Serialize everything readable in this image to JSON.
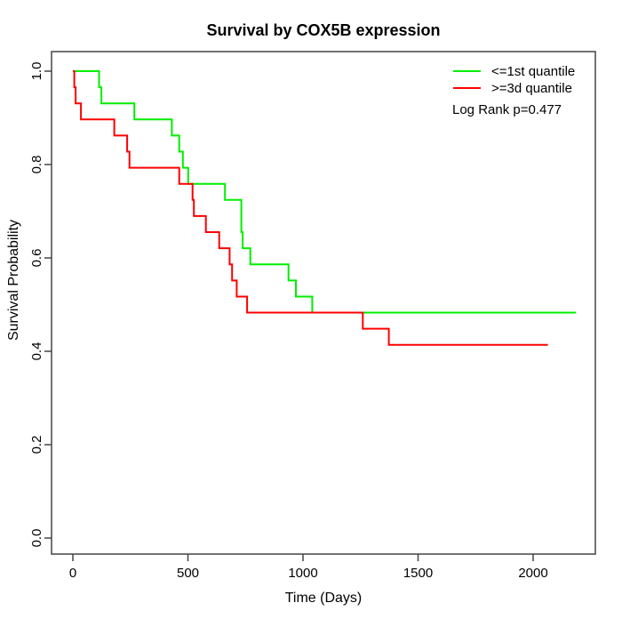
{
  "figure": {
    "background": "#ffffff",
    "axis_color": "#444444",
    "text_color": "#000000"
  },
  "chart_data": {
    "type": "line",
    "subtype": "kaplan-meier-step",
    "title": "Survival by COX5B expression",
    "xlabel": "Time (Days)",
    "ylabel": "Survival Probability",
    "x_range": [
      0,
      2000
    ],
    "y_range": [
      0.0,
      1.0
    ],
    "grid": false,
    "legend_position": "top-right",
    "annotation": "Log Rank p=0.477",
    "x_ticks": [
      {
        "value": 0,
        "label": "0"
      },
      {
        "value": 500,
        "label": "500"
      },
      {
        "value": 1000,
        "label": "1000"
      },
      {
        "value": 1500,
        "label": "1500"
      },
      {
        "value": 2000,
        "label": "2000"
      }
    ],
    "y_ticks": [
      {
        "value": 0.0,
        "label": "0.0"
      },
      {
        "value": 0.2,
        "label": "0.2"
      },
      {
        "value": 0.4,
        "label": "0.4"
      },
      {
        "value": 0.6,
        "label": "0.6"
      },
      {
        "value": 0.8,
        "label": "0.8"
      },
      {
        "value": 1.0,
        "label": "1.0"
      }
    ],
    "series": [
      {
        "name": "<=1st quantile",
        "color": "#00ee00",
        "end_time": 2186,
        "points": [
          [
            0,
            1.0
          ],
          [
            114,
            0.9655
          ],
          [
            124,
            0.931
          ],
          [
            267,
            0.8966
          ],
          [
            430,
            0.8621
          ],
          [
            462,
            0.8276
          ],
          [
            478,
            0.7931
          ],
          [
            501,
            0.7586
          ],
          [
            661,
            0.7241
          ],
          [
            732,
            0.6552
          ],
          [
            738,
            0.6207
          ],
          [
            771,
            0.5862
          ],
          [
            937,
            0.5517
          ],
          [
            969,
            0.5172
          ],
          [
            1040,
            0.4828
          ]
        ]
      },
      {
        "name": ">=3d quantile",
        "color": "#ff0000",
        "end_time": 2064,
        "points": [
          [
            0,
            1.0
          ],
          [
            6,
            0.9655
          ],
          [
            12,
            0.931
          ],
          [
            35,
            0.8966
          ],
          [
            180,
            0.8621
          ],
          [
            236,
            0.8276
          ],
          [
            246,
            0.7931
          ],
          [
            462,
            0.7586
          ],
          [
            520,
            0.7241
          ],
          [
            526,
            0.6897
          ],
          [
            578,
            0.6552
          ],
          [
            636,
            0.6207
          ],
          [
            681,
            0.5862
          ],
          [
            692,
            0.5517
          ],
          [
            712,
            0.5172
          ],
          [
            757,
            0.4828
          ],
          [
            1260,
            0.4483
          ],
          [
            1373,
            0.4138
          ]
        ]
      }
    ]
  }
}
